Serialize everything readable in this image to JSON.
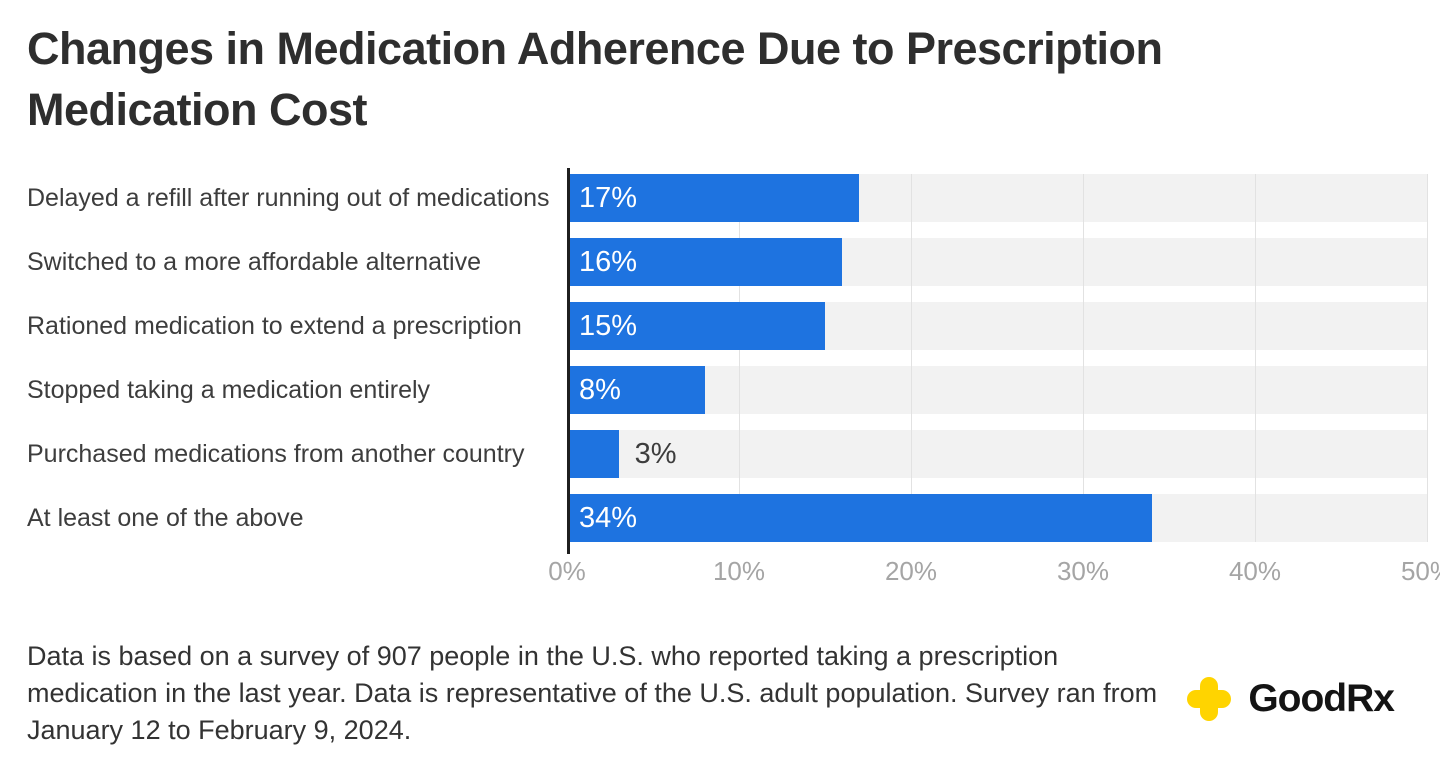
{
  "title": "Changes in Medication Adherence Due to Prescription Medication Cost",
  "chart_data": {
    "type": "bar",
    "orientation": "horizontal",
    "title": "Changes in Medication Adherence Due to Prescription Medication Cost",
    "categories": [
      "Delayed a refill after running out of medications",
      "Switched to a more affordable alternative",
      "Rationed medication to extend a prescription",
      "Stopped taking a medication entirely",
      "Purchased medications from another country",
      "At least one of the above"
    ],
    "values": [
      17,
      16,
      15,
      8,
      3,
      34
    ],
    "value_labels": [
      "17%",
      "16%",
      "15%",
      "8%",
      "3%",
      "34%"
    ],
    "xlim": [
      0,
      50
    ],
    "x_tick_labels": [
      "0%",
      "10%",
      "20%",
      "30%",
      "40%",
      "50%"
    ],
    "grid": true,
    "legend": "none",
    "colors": {
      "bar": "#1e73e0",
      "track": "#f2f2f2",
      "gridline": "#e2e2e2",
      "axis_line": "#1f1f1f",
      "tick_label": "#a5a5a5"
    }
  },
  "footer": {
    "note": "Data is based on a survey of 907 people in the U.S. who reported taking a prescription medication in the last year. Data is representative of the U.S. adult population. Survey ran from January 12 to February 9, 2024."
  },
  "logo": {
    "text": "GoodRx",
    "cross_color": "#ffd400"
  }
}
